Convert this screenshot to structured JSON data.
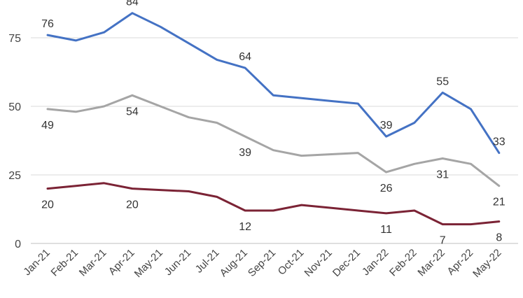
{
  "chart_data": {
    "type": "line",
    "title": "",
    "xlabel": "",
    "ylabel": "",
    "categories": [
      "Jan-21",
      "Feb-21",
      "Mar-21",
      "Apr-21",
      "May-21",
      "Jun-21",
      "Jul-21",
      "Aug-21",
      "Sep-21",
      "Oct-21",
      "Nov-21",
      "Dec-21",
      "Jan-22",
      "Feb-22",
      "Mar-22",
      "Apr-22",
      "May-22"
    ],
    "yticks": [
      0,
      25,
      50,
      75
    ],
    "ylim": [
      0,
      84
    ],
    "grid": true,
    "legend": "none",
    "series": [
      {
        "color": "#4472C4",
        "values": [
          76,
          74,
          77,
          84,
          79,
          73,
          67,
          64,
          54,
          53,
          52,
          51,
          39,
          44,
          55,
          49,
          33
        ],
        "labels": [
          {
            "index": 0,
            "text": "76",
            "pos": "above"
          },
          {
            "index": 3,
            "text": "84",
            "pos": "above"
          },
          {
            "index": 7,
            "text": "64",
            "pos": "above"
          },
          {
            "index": 12,
            "text": "39",
            "pos": "above"
          },
          {
            "index": 14,
            "text": "55",
            "pos": "above"
          },
          {
            "index": 16,
            "text": "33",
            "pos": "above"
          }
        ]
      },
      {
        "color": "#A5A5A5",
        "values": [
          49,
          48,
          50,
          54,
          50,
          46,
          44,
          39,
          34,
          32,
          32.5,
          33,
          26,
          29,
          31,
          29,
          21
        ],
        "labels": [
          {
            "index": 0,
            "text": "49",
            "pos": "below"
          },
          {
            "index": 3,
            "text": "54",
            "pos": "below"
          },
          {
            "index": 7,
            "text": "39",
            "pos": "below"
          },
          {
            "index": 12,
            "text": "26",
            "pos": "below"
          },
          {
            "index": 14,
            "text": "31",
            "pos": "below"
          },
          {
            "index": 16,
            "text": "21",
            "pos": "below"
          }
        ]
      },
      {
        "color": "#7B2335",
        "values": [
          20,
          21,
          22,
          20,
          19.5,
          19,
          17,
          12,
          12,
          14,
          13,
          12,
          11,
          12,
          7,
          7,
          8
        ],
        "labels": [
          {
            "index": 0,
            "text": "20",
            "pos": "below"
          },
          {
            "index": 3,
            "text": "20",
            "pos": "below"
          },
          {
            "index": 7,
            "text": "12",
            "pos": "below"
          },
          {
            "index": 12,
            "text": "11",
            "pos": "below"
          },
          {
            "index": 14,
            "text": "7",
            "pos": "below"
          },
          {
            "index": 16,
            "text": "8",
            "pos": "below"
          }
        ]
      }
    ]
  }
}
